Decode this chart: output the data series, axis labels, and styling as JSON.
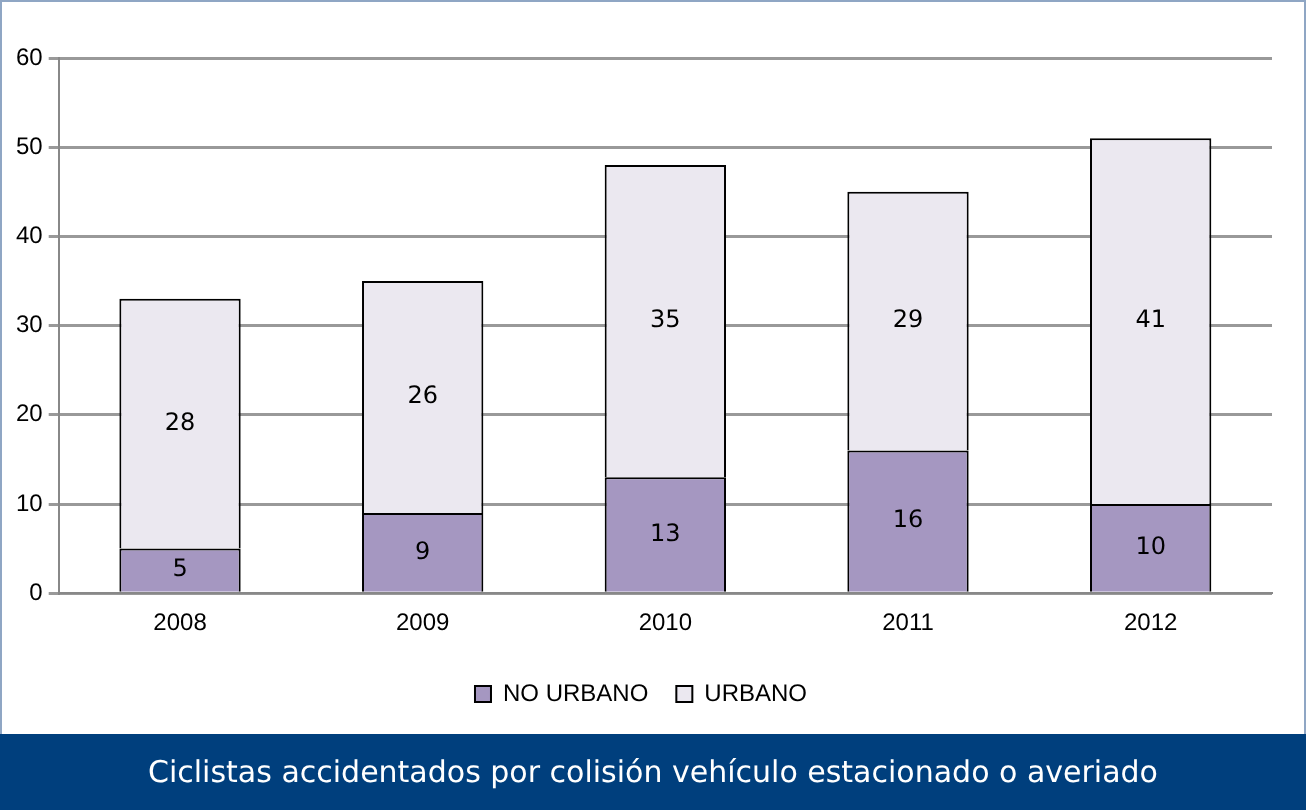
{
  "chart_data": {
    "type": "bar",
    "categories": [
      "2008",
      "2009",
      "2010",
      "2011",
      "2012"
    ],
    "series": [
      {
        "name": "NO URBANO",
        "color": "#a597c1",
        "values": [
          5,
          9,
          13,
          16,
          10
        ]
      },
      {
        "name": "URBANO",
        "color": "#ebe8f0",
        "values": [
          28,
          26,
          35,
          29,
          41
        ]
      }
    ],
    "stacked": true,
    "ylim": [
      0,
      60
    ],
    "yticks": [
      0,
      10,
      20,
      30,
      40,
      50,
      60
    ],
    "grid": "y",
    "legend": "bottom",
    "data_labels": true,
    "annotations": [
      "Ciclistas accidentados por colisión vehículo estacionado o averiado"
    ]
  }
}
